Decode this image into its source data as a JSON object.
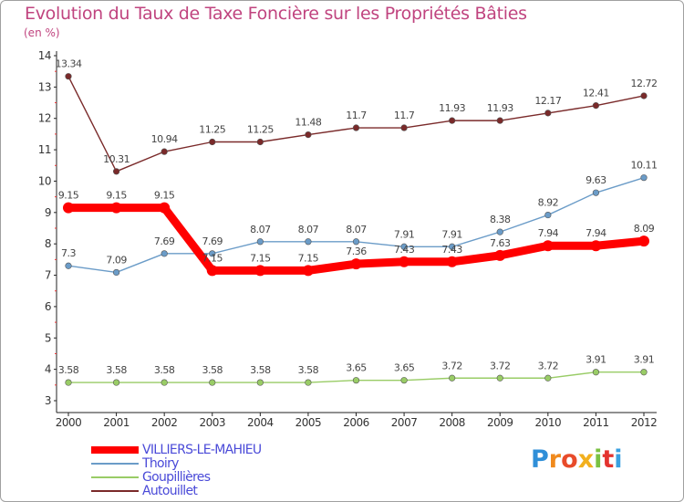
{
  "header": {
    "title": "Evolution du Taux de Taxe Foncière sur les Propriétés Bâties",
    "unit": "(en %)"
  },
  "logo": {
    "letters": [
      "P",
      "r",
      "o",
      "x",
      "i",
      "t",
      "i"
    ],
    "colors": [
      "#2f8fd8",
      "#f08a1d",
      "#e84b2a",
      "#f2b01e",
      "#7ac142",
      "#e3342f",
      "#3aa0e0"
    ]
  },
  "chart_data": {
    "type": "line",
    "title": "Evolution du Taux de Taxe Foncière sur les Propriétés Bâties",
    "ylabel": "(en %)",
    "xlabel": "",
    "categories": [
      "2000",
      "2001",
      "2002",
      "2003",
      "2004",
      "2005",
      "2006",
      "2007",
      "2008",
      "2009",
      "2010",
      "2011",
      "2012"
    ],
    "ylim": [
      3,
      14
    ],
    "yticks": [
      "3",
      "4",
      "5",
      "6",
      "7",
      "8",
      "9",
      "10",
      "11",
      "12",
      "13",
      "14"
    ],
    "grid": false,
    "series": [
      {
        "name": "VILLIERS-LE-MAHIEU",
        "color": "#ff0000",
        "values": [
          9.15,
          9.15,
          9.15,
          7.15,
          7.15,
          7.15,
          7.36,
          7.43,
          7.43,
          7.63,
          7.94,
          7.94,
          8.09
        ],
        "labels": [
          "9.15",
          "9.15",
          "9.15",
          "7.15",
          "7.15",
          "7.15",
          "7.36",
          "7.43",
          "7.43",
          "7.63",
          "7.94",
          "7.94",
          "8.09"
        ]
      },
      {
        "name": "Thoiry",
        "color": "#6b9cc8",
        "values": [
          7.3,
          7.09,
          7.69,
          7.69,
          8.07,
          8.07,
          8.07,
          7.91,
          7.91,
          8.38,
          8.92,
          9.63,
          10.11
        ],
        "labels": [
          "7.3",
          "7.09",
          "7.69",
          "7.69",
          "8.07",
          "8.07",
          "8.07",
          "7.91",
          "7.91",
          "8.38",
          "8.92",
          "9.63",
          "10.11"
        ]
      },
      {
        "name": "Goupillières",
        "color": "#99cc66",
        "values": [
          3.58,
          3.58,
          3.58,
          3.58,
          3.58,
          3.58,
          3.65,
          3.65,
          3.72,
          3.72,
          3.72,
          3.91,
          3.91
        ],
        "labels": [
          "3.58",
          "3.58",
          "3.58",
          "3.58",
          "3.58",
          "3.58",
          "3.65",
          "3.65",
          "3.72",
          "3.72",
          "3.72",
          "3.91",
          "3.91"
        ]
      },
      {
        "name": "Autouillet",
        "color": "#7a2a2a",
        "values": [
          13.34,
          10.31,
          10.94,
          11.25,
          11.25,
          11.48,
          11.7,
          11.7,
          11.93,
          11.93,
          12.17,
          12.41,
          12.72
        ],
        "labels": [
          "13.34",
          "10.31",
          "10.94",
          "11.25",
          "11.25",
          "11.48",
          "11.7",
          "11.7",
          "11.93",
          "11.93",
          "12.17",
          "12.41",
          "12.72"
        ]
      }
    ]
  }
}
